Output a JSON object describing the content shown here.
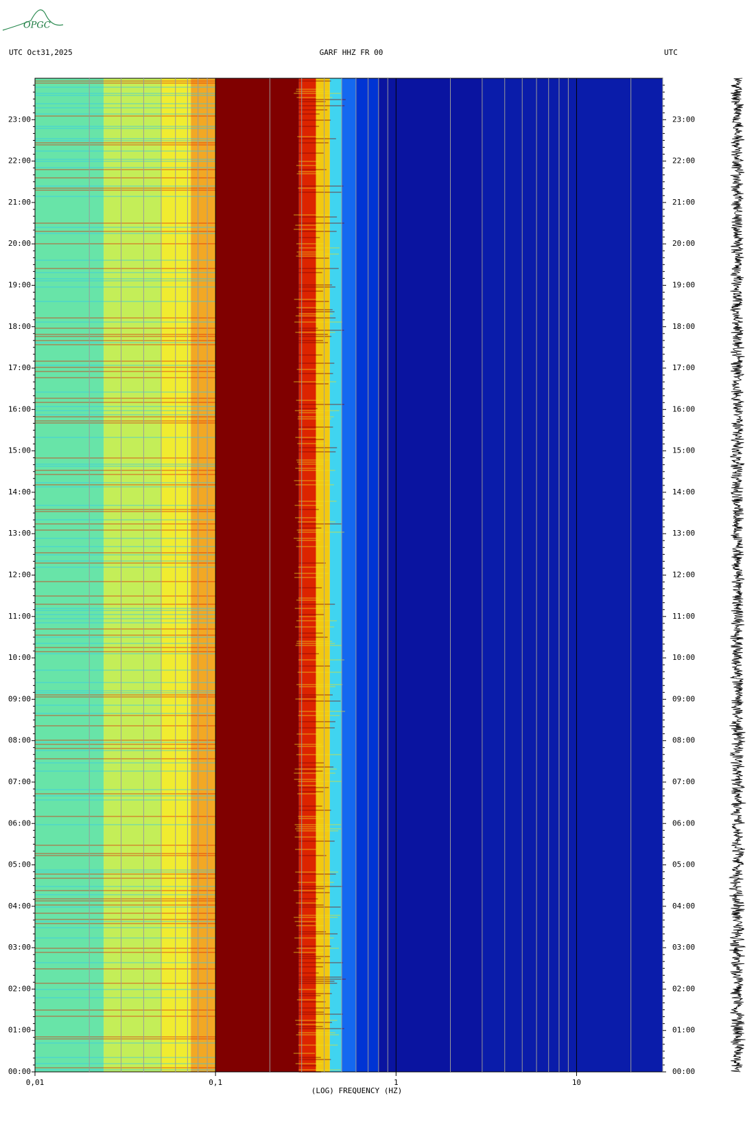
{
  "chart_data": {
    "type": "spectrogram",
    "logo": "OPGC",
    "left_label": "UTC  Oct31,2025",
    "title": "GARF HHZ FR 00",
    "right_label": "UTC",
    "xlabel": "(LOG) FREQUENCY (HZ)",
    "log_x": true,
    "grid": true,
    "xlim": [
      0.01,
      30
    ],
    "xticks": [
      {
        "value": 0.01,
        "label": "0,01"
      },
      {
        "value": 0.1,
        "label": "0,1"
      },
      1,
      10
    ],
    "ylim": [
      0,
      24
    ],
    "yticks": [
      {
        "value": 0,
        "label": "00:00"
      },
      {
        "value": 1,
        "label": "01:00"
      },
      {
        "value": 2,
        "label": "02:00"
      },
      {
        "value": 3,
        "label": "03:00"
      },
      {
        "value": 4,
        "label": "04:00"
      },
      {
        "value": 5,
        "label": "05:00"
      },
      {
        "value": 6,
        "label": "06:00"
      },
      {
        "value": 7,
        "label": "07:00"
      },
      {
        "value": 8,
        "label": "08:00"
      },
      {
        "value": 9,
        "label": "09:00"
      },
      {
        "value": 10,
        "label": "10:00"
      },
      {
        "value": 11,
        "label": "11:00"
      },
      {
        "value": 12,
        "label": "12:00"
      },
      {
        "value": 13,
        "label": "13:00"
      },
      {
        "value": 14,
        "label": "14:00"
      },
      {
        "value": 15,
        "label": "15:00"
      },
      {
        "value": 16,
        "label": "16:00"
      },
      {
        "value": 17,
        "label": "17:00"
      },
      {
        "value": 18,
        "label": "18:00"
      },
      {
        "value": 19,
        "label": "19:00"
      },
      {
        "value": 20,
        "label": "20:00"
      },
      {
        "value": 21,
        "label": "21:00"
      },
      {
        "value": 22,
        "label": "22:00"
      },
      {
        "value": 23,
        "label": "23:00"
      }
    ],
    "bins": [
      0.01,
      0.024,
      0.05,
      0.073,
      0.1,
      0.29,
      0.36,
      0.43,
      0.5,
      0.6,
      0.8,
      3,
      30
    ],
    "colors": [
      "#68e4a8",
      "#c4ee58",
      "#f0ec30",
      "#f2a824",
      "#800000",
      "#dc2400",
      "#f2c810",
      "#40d4f0",
      "#1468f0",
      "#0034d4",
      "#0a14a0",
      "#0a1caa"
    ]
  }
}
